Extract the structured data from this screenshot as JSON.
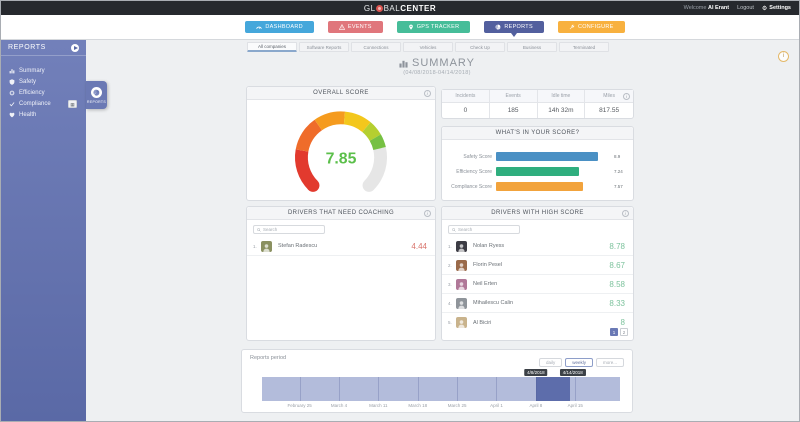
{
  "topbar": {
    "logo_pre": "GL",
    "logo_mid": "BAL",
    "logo_bold": "CENTER",
    "welcome_label": "Welcome",
    "username": "Al Erant",
    "logout": "Logout",
    "settings": "Settings"
  },
  "nav": {
    "items": [
      {
        "label": "DASHBOARD",
        "color": "#45a7db"
      },
      {
        "label": "EVENTS",
        "color": "#e0767c"
      },
      {
        "label": "GPS TRACKER",
        "color": "#46bd99"
      },
      {
        "label": "REPORTS",
        "color": "#525f9e"
      },
      {
        "label": "CONFIGURE",
        "color": "#f8b13f"
      }
    ]
  },
  "sidebar": {
    "title": "REPORTS",
    "items": [
      "Summary",
      "Safety",
      "Efficiency",
      "Compliance",
      "Health"
    ],
    "flyout_label": "REPORTS"
  },
  "tabs": {
    "items": [
      "All companies",
      "Software Reports",
      "Connections",
      "Vehicles",
      "Check Up",
      "Business",
      "Terminated"
    ]
  },
  "page": {
    "title": "SUMMARY",
    "date_range": "(04/08/2018-04/14/2018)"
  },
  "overall": {
    "title": "OVERALL SCORE",
    "score": "7.85"
  },
  "stats": {
    "columns": [
      {
        "label": "Incidents",
        "value": "0"
      },
      {
        "label": "Events",
        "value": "185"
      },
      {
        "label": "Idle time",
        "value": "14h 32m"
      },
      {
        "label": "Miles",
        "value": "817.55"
      }
    ]
  },
  "score_breakdown": {
    "title": "WHAT'S IN YOUR SCORE?",
    "bars": [
      {
        "label": "Safety Score",
        "value": 8.9,
        "display": "8.9",
        "color": "#4a90c4"
      },
      {
        "label": "Efficiency Score",
        "value": 7.24,
        "display": "7.24",
        "color": "#2fae7e"
      },
      {
        "label": "Compliance Score",
        "value": 7.57,
        "display": "7.57",
        "color": "#f2a33c"
      }
    ]
  },
  "coaching": {
    "title": "DRIVERS THAT NEED COACHING",
    "search_placeholder": "Search",
    "rows": [
      {
        "rank": "1.",
        "name": "Stefan Radescu",
        "score": "4.44",
        "avatar_color": "#8a9060"
      }
    ]
  },
  "high_score": {
    "title": "DRIVERS WITH HIGH SCORE",
    "search_placeholder": "Search",
    "rows": [
      {
        "rank": "1.",
        "name": "Nolan Ryess",
        "score": "8.78",
        "avatar_color": "#3c3c44"
      },
      {
        "rank": "2.",
        "name": "Florin Pesel",
        "score": "8.67",
        "avatar_color": "#9a6a4a"
      },
      {
        "rank": "3.",
        "name": "Neil Erten",
        "score": "8.58",
        "avatar_color": "#b07898"
      },
      {
        "rank": "4.",
        "name": "Mihailescu Calin",
        "score": "8.33",
        "avatar_color": "#8f949a"
      },
      {
        "rank": "5.",
        "name": "Al Biciri",
        "score": "8",
        "avatar_color": "#c9b38c"
      }
    ],
    "pagination": [
      "1",
      "2"
    ]
  },
  "reports_period": {
    "label": "Reports period",
    "buttons": [
      {
        "label": "daily",
        "active": false
      },
      {
        "label": "weekly",
        "active": true
      },
      {
        "label": "more...",
        "active": false
      }
    ],
    "range_start_tooltip": "4/8/2018",
    "range_end_tooltip": "4/14/2018",
    "dates": [
      "February 25",
      "March 4",
      "March 11",
      "March 18",
      "March 25",
      "April 1",
      "April 8",
      "April 15"
    ]
  },
  "chart_data": [
    {
      "type": "gauge",
      "title": "OVERALL SCORE",
      "value": 7.85,
      "range": [
        0,
        10
      ]
    },
    {
      "type": "bar",
      "title": "WHAT'S IN YOUR SCORE?",
      "orientation": "horizontal",
      "categories": [
        "Safety Score",
        "Efficiency Score",
        "Compliance Score"
      ],
      "values": [
        8.9,
        7.24,
        7.57
      ],
      "xlim": [
        0,
        10
      ]
    }
  ]
}
